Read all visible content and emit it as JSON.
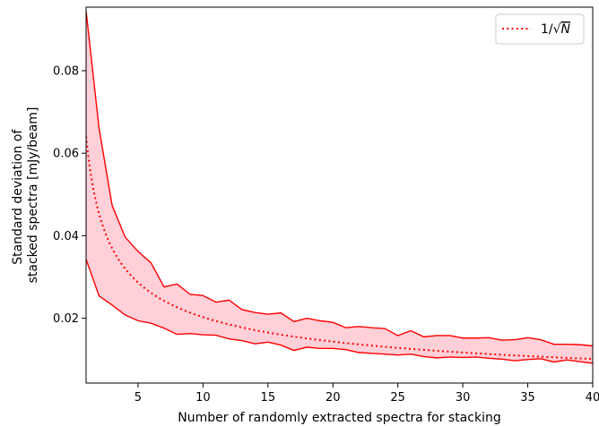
{
  "chart_data": {
    "type": "line",
    "title": "",
    "xlabel": "Number of randomly extracted spectra for stacking",
    "ylabel_lines": [
      "Standard deviation of",
      "stacked spectra [mJy/beam]"
    ],
    "xlim": [
      1,
      40
    ],
    "ylim": [
      0.0043,
      0.0954
    ],
    "xticks": [
      5,
      10,
      15,
      20,
      25,
      30,
      35,
      40
    ],
    "xtick_labels": [
      "5",
      "10",
      "15",
      "20",
      "25",
      "30",
      "35",
      "40"
    ],
    "yticks": [
      0.02,
      0.04,
      0.06,
      0.08
    ],
    "ytick_labels": [
      "0.02",
      "0.04",
      "0.06",
      "0.08"
    ],
    "grid": false,
    "legend_position": "top-right",
    "legend_entries": [
      {
        "label_prefix": "1/",
        "label_sqrt": "N",
        "style": "dotted",
        "color": "#ff0000"
      }
    ],
    "band": {
      "name": "",
      "color": "#ff0000",
      "fill_color": "#ffd0d8",
      "x": [
        1,
        2,
        3,
        4,
        5,
        6,
        7,
        8,
        9,
        10,
        11,
        12,
        13,
        14,
        15,
        16,
        17,
        18,
        19,
        20,
        21,
        22,
        23,
        24,
        25,
        26,
        27,
        28,
        29,
        30,
        31,
        32,
        33,
        34,
        35,
        36,
        37,
        38,
        39,
        40
      ],
      "upper": [
        0.0945,
        0.066,
        0.0474,
        0.0397,
        0.0362,
        0.0334,
        0.0276,
        0.0283,
        0.0258,
        0.0255,
        0.0239,
        0.0244,
        0.0221,
        0.0214,
        0.021,
        0.0213,
        0.0192,
        0.02,
        0.0194,
        0.019,
        0.0177,
        0.018,
        0.0177,
        0.0175,
        0.0158,
        0.017,
        0.0155,
        0.0158,
        0.0158,
        0.0152,
        0.0152,
        0.0153,
        0.0147,
        0.0148,
        0.0153,
        0.0148,
        0.0137,
        0.0137,
        0.0136,
        0.0133
      ],
      "lower": [
        0.0343,
        0.0254,
        0.0232,
        0.0208,
        0.0194,
        0.0188,
        0.0176,
        0.0161,
        0.0163,
        0.016,
        0.0159,
        0.015,
        0.0146,
        0.0138,
        0.0142,
        0.0135,
        0.0122,
        0.013,
        0.0127,
        0.0127,
        0.0124,
        0.0117,
        0.0115,
        0.0113,
        0.0111,
        0.0113,
        0.0107,
        0.0104,
        0.0106,
        0.0105,
        0.0106,
        0.0103,
        0.0101,
        0.0097,
        0.01,
        0.0102,
        0.0094,
        0.0099,
        0.0095,
        0.0091
      ]
    },
    "reference_curve": {
      "formula": "1/sqrt(N)",
      "scale": 0.0641,
      "style": "dotted",
      "color": "#ff0000"
    }
  }
}
